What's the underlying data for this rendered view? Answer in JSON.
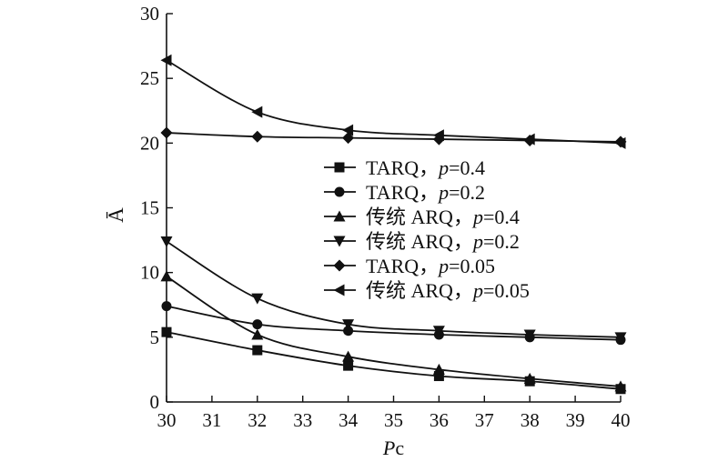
{
  "chart_data": {
    "type": "line",
    "title": "",
    "xlabel": "Pc",
    "ylabel": "Ā",
    "xlim": [
      30,
      40
    ],
    "ylim": [
      0,
      30
    ],
    "x_ticks": [
      30,
      31,
      32,
      33,
      34,
      35,
      36,
      37,
      38,
      39,
      40
    ],
    "y_ticks": [
      0,
      5,
      10,
      15,
      20,
      25,
      30
    ],
    "grid": false,
    "legend_position": "center-right",
    "x": [
      30,
      32,
      34,
      36,
      38,
      40
    ],
    "series": [
      {
        "name": "TARQ，p=0.4",
        "marker": "square",
        "values": [
          5.4,
          4.0,
          2.8,
          2.0,
          1.6,
          1.0
        ]
      },
      {
        "name": "TARQ，p=0.2",
        "marker": "circle",
        "values": [
          7.4,
          6.0,
          5.5,
          5.2,
          5.0,
          4.8
        ]
      },
      {
        "name": "传统 ARQ，p=0.4",
        "marker": "triangle-up",
        "values": [
          9.7,
          5.2,
          3.5,
          2.5,
          1.8,
          1.2
        ]
      },
      {
        "name": "传统 ARQ，p=0.2",
        "marker": "triangle-down",
        "values": [
          12.4,
          8.0,
          6.0,
          5.5,
          5.2,
          5.0
        ]
      },
      {
        "name": "TARQ，p=0.05",
        "marker": "diamond",
        "values": [
          20.8,
          20.5,
          20.4,
          20.3,
          20.2,
          20.1
        ]
      },
      {
        "name": "传统 ARQ，p=0.05",
        "marker": "triangle-left",
        "values": [
          26.4,
          22.4,
          21.0,
          20.6,
          20.3,
          20.0
        ]
      }
    ],
    "legend": [
      {
        "prefix": "TARQ，",
        "italic": "p",
        "suffix": "=0.4"
      },
      {
        "prefix": "TARQ，",
        "italic": "p",
        "suffix": "=0.2"
      },
      {
        "prefix": "传统 ARQ，",
        "italic": "p",
        "suffix": "=0.4"
      },
      {
        "prefix": "传统 ARQ，",
        "italic": "p",
        "suffix": "=0.2"
      },
      {
        "prefix": "TARQ，",
        "italic": "p",
        "suffix": "=0.05"
      },
      {
        "prefix": "传统 ARQ，",
        "italic": "p",
        "suffix": "=0.05"
      }
    ],
    "xlabel_parts": {
      "italic": "P",
      "plain": "c"
    }
  }
}
